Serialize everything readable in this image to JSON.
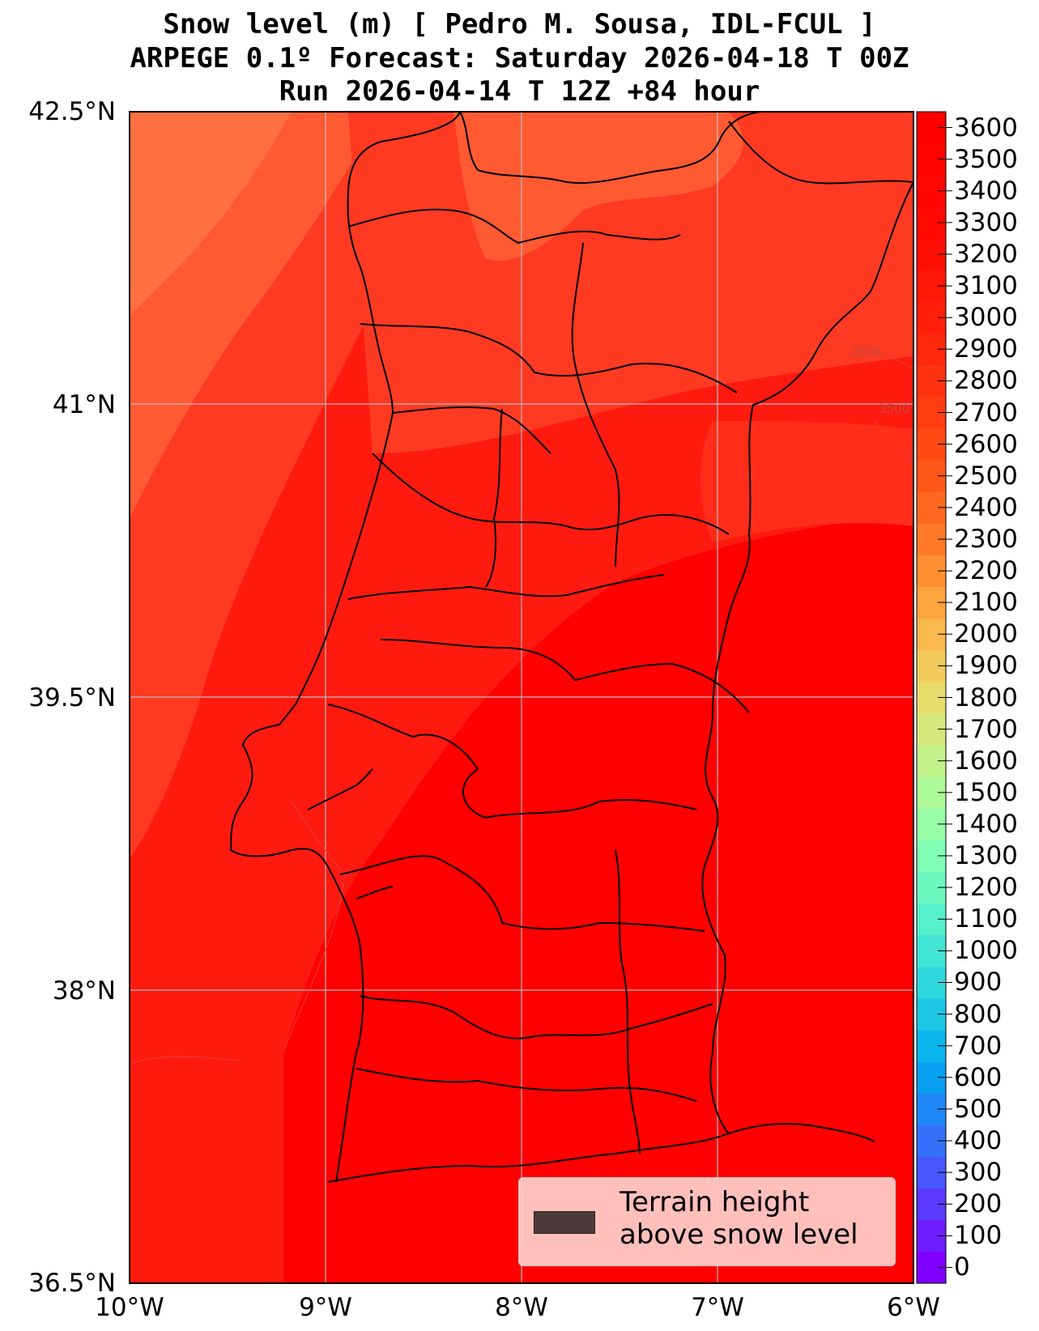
{
  "title": {
    "line1": "Snow level (m) [ Pedro M. Sousa, IDL-FCUL ]",
    "line2": "ARPEGE 0.1º Forecast: Saturday 2026-04-18 T 00Z",
    "line3": "Run 2026-04-14 T 12Z +84 hour"
  },
  "map": {
    "region": "Portugal",
    "lon_range": [
      -10,
      -6
    ],
    "lat_range": [
      36.5,
      42.5
    ],
    "lat_labels": [
      "42.5°N",
      "41°N",
      "39.5°N",
      "38°N",
      "36.5°N"
    ],
    "lon_labels": [
      "10°W",
      "9°W",
      "8°W",
      "7°W",
      "6°W"
    ],
    "contour_labels": [
      "3500",
      "3500"
    ],
    "fill_colors": {
      "lowest": "#ff0000",
      "low": "#ff1a10",
      "mid": "#ff2d1a",
      "upper": "#ff3a22",
      "high": "#ff5a32",
      "highest": "#ff7040"
    }
  },
  "colorbar": {
    "unit": "m",
    "min": 0,
    "max": 3700,
    "step": 100,
    "tick_labels": [
      "3600",
      "3500",
      "3400",
      "3300",
      "3200",
      "3100",
      "3000",
      "2900",
      "2800",
      "2700",
      "2600",
      "2500",
      "2400",
      "2300",
      "2200",
      "2100",
      "2000",
      "1900",
      "1800",
      "1700",
      "1600",
      "1500",
      "1400",
      "1300",
      "1200",
      "1100",
      "1000",
      "900",
      "800",
      "700",
      "600",
      "500",
      "400",
      "300",
      "200",
      "100",
      "0"
    ],
    "colors": [
      "#8000ff",
      "#6e1dfe",
      "#5b39fd",
      "#4856fc",
      "#3570fa",
      "#2088f6",
      "#0aa0f1",
      "#0ab5eb",
      "#1ec8e4",
      "#30d8dc",
      "#42e5d4",
      "#56f1cb",
      "#6cf8c0",
      "#82fdb5",
      "#99fea8",
      "#aef99a",
      "#c3f28b",
      "#d6e87c",
      "#e8dc6c",
      "#f3cc5d",
      "#f9b94d",
      "#fea43d",
      "#ff8f30",
      "#ff7a28",
      "#ff6820",
      "#ff581a",
      "#ff4a16",
      "#ff3d12",
      "#ff320f",
      "#ff280c",
      "#ff1f0a",
      "#ff1708",
      "#ff1006",
      "#ff0a04",
      "#ff0503",
      "#ff0202",
      "#ff0000"
    ]
  },
  "legend": {
    "line1": "Terrain height",
    "line2": "above snow level",
    "swatch_color": "#4d3a3a"
  }
}
